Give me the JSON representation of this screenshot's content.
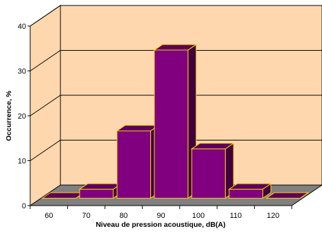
{
  "chart_data": {
    "type": "bar",
    "title": "",
    "xlabel": "Niveau de pression acoustique, dB(A)",
    "ylabel": "Occurrence, %",
    "categories": [
      "60",
      "70",
      "80",
      "90",
      "100",
      "110",
      "120"
    ],
    "values": [
      0,
      2,
      15,
      33,
      11,
      2,
      0
    ],
    "ylim": [
      0,
      40
    ],
    "y_ticks": [
      "0",
      "10",
      "20",
      "30",
      "40"
    ],
    "grid": true,
    "legend": "none",
    "three_d": true
  },
  "colors": {
    "back_wall": "#ffd7ae",
    "floor": "#808080",
    "bar_front": "#800080",
    "bar_top": "#5c005c",
    "bar_side": "#400040",
    "bar_edge": "#ffd700",
    "gridline": "#000000"
  }
}
